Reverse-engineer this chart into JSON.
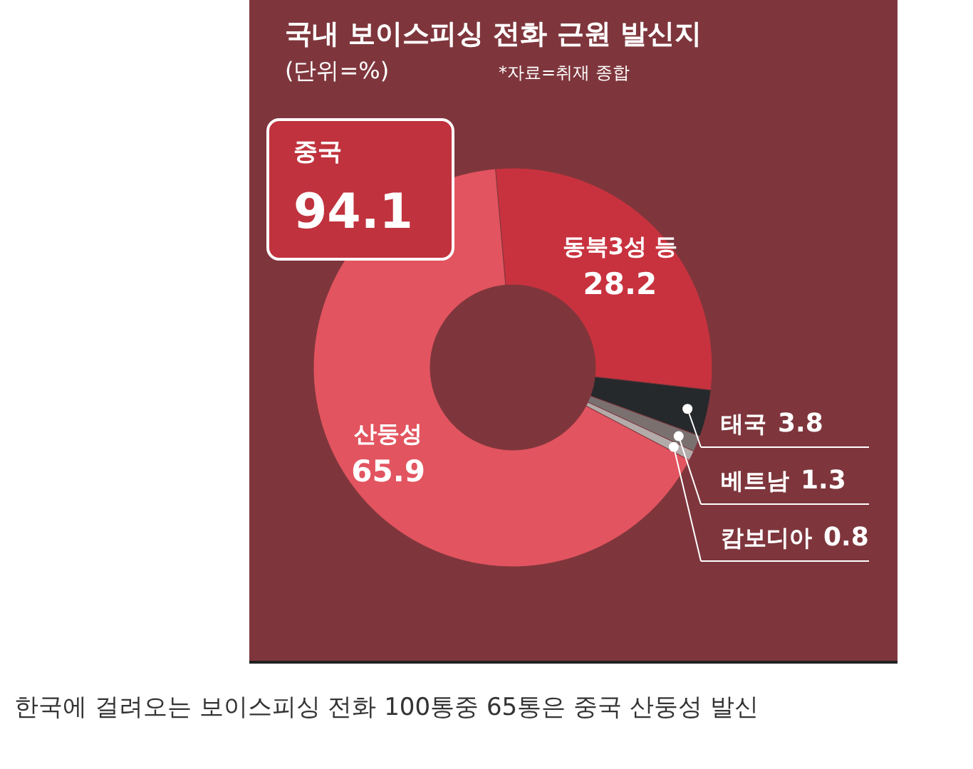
{
  "chart_data": {
    "type": "donut",
    "title": "국내 보이스피싱 전화 근원 발신지",
    "subtitle": "(단위=%)",
    "categories": [
      "동북3성 등",
      "태국",
      "베트남",
      "캄보디아",
      "산둥성"
    ],
    "values": [
      28.2,
      3.8,
      1.3,
      0.8,
      65.9
    ],
    "colors": [
      "#c8323e",
      "#26292b",
      "#7a7070",
      "#b3aaaa",
      "#e2545f"
    ],
    "data_labels": true,
    "annotations": [
      "중국",
      "94.1",
      "*자료=취재 종합",
      "한국에 걸려오는 보이스피싱 전화 100통중 65통은 중국 산둥성 발신"
    ]
  }
}
